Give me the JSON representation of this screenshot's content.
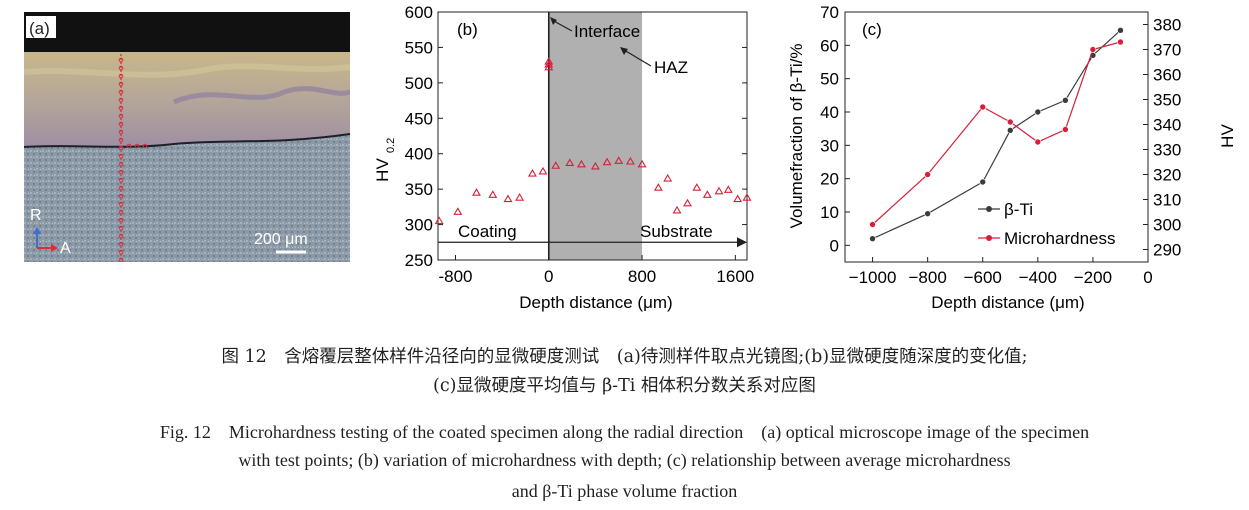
{
  "panel_a": {
    "label": "(a)",
    "scale_bar": "200 μm",
    "axis_r": "R",
    "axis_a": "A"
  },
  "chart_data": [
    {
      "type": "scatter",
      "label": "(b)",
      "ylabel_main": "HV",
      "ylabel_sub": "0.2",
      "xlabel": "Depth distance (μm)",
      "xlim": [
        -950,
        1700
      ],
      "ylim": [
        250,
        600
      ],
      "xticks": [
        -800,
        0,
        800,
        1600
      ],
      "yticks": [
        250,
        300,
        350,
        400,
        450,
        500,
        550,
        600
      ],
      "haz_range": [
        0,
        800
      ],
      "interface_x": 0,
      "annotations": {
        "interface": "Interface",
        "haz": "HAZ",
        "coating": "Coating",
        "substrate": "Substrate"
      },
      "marker_color": "#d6203a",
      "points": [
        [
          -940,
          305
        ],
        [
          -780,
          318
        ],
        [
          -620,
          345
        ],
        [
          -480,
          342
        ],
        [
          -350,
          336
        ],
        [
          -250,
          338
        ],
        [
          -140,
          372
        ],
        [
          -50,
          375
        ],
        [
          0,
          530
        ],
        [
          0,
          522
        ],
        [
          0,
          526
        ],
        [
          60,
          383
        ],
        [
          180,
          387
        ],
        [
          280,
          385
        ],
        [
          400,
          382
        ],
        [
          500,
          388
        ],
        [
          600,
          390
        ],
        [
          700,
          389
        ],
        [
          800,
          385
        ],
        [
          940,
          352
        ],
        [
          1020,
          365
        ],
        [
          1100,
          320
        ],
        [
          1190,
          330
        ],
        [
          1270,
          352
        ],
        [
          1360,
          342
        ],
        [
          1460,
          347
        ],
        [
          1540,
          349
        ],
        [
          1620,
          336
        ],
        [
          1700,
          338
        ]
      ]
    },
    {
      "type": "line",
      "label": "(c)",
      "ylabel_left": "Volumefraction of β-Ti/%",
      "ylabel_right": "HV",
      "xlabel": "Depth distance (μm)",
      "xlim": [
        -1100,
        0
      ],
      "ylim_left": [
        -5,
        70
      ],
      "ylim_right": [
        285,
        385
      ],
      "xticks": [
        -1000,
        -800,
        -600,
        -400,
        -200,
        0
      ],
      "xtick_labels": [
        "−1000",
        "−800",
        "−600",
        "−400",
        "−200",
        "0"
      ],
      "yticks_left": [
        0,
        10,
        20,
        30,
        40,
        50,
        60,
        70
      ],
      "yticks_right": [
        290,
        300,
        310,
        320,
        330,
        340,
        350,
        360,
        370,
        380
      ],
      "series": [
        {
          "name": "β-Ti",
          "axis": "left",
          "color": "#3b3b3b",
          "x": [
            -1000,
            -800,
            -600,
            -500,
            -400,
            -300,
            -200,
            -100
          ],
          "values": [
            2,
            9.5,
            19,
            34.5,
            40,
            43.5,
            57,
            64.5
          ]
        },
        {
          "name": "Microhardness",
          "axis": "right",
          "color": "#d6203a",
          "x": [
            -1000,
            -800,
            -600,
            -500,
            -400,
            -300,
            -200,
            -100
          ],
          "values": [
            300,
            320,
            347,
            341,
            333,
            338,
            370,
            373
          ]
        }
      ]
    }
  ],
  "caption": {
    "cn_line1": "图 12　含熔覆层整体样件沿径向的显微硬度测试　(a)待测样件取点光镜图;(b)显微硬度随深度的变化值;",
    "cn_line2": "(c)显微硬度平均值与 β-Ti 相体积分数关系对应图",
    "en_line1": "Fig. 12　Microhardness testing of the coated specimen along the radial direction　(a) optical microscope image of the specimen",
    "en_line2": "with test points; (b) variation of microhardness with depth; (c) relationship between average microhardness",
    "en_line3": "and β-Ti phase volume fraction"
  }
}
